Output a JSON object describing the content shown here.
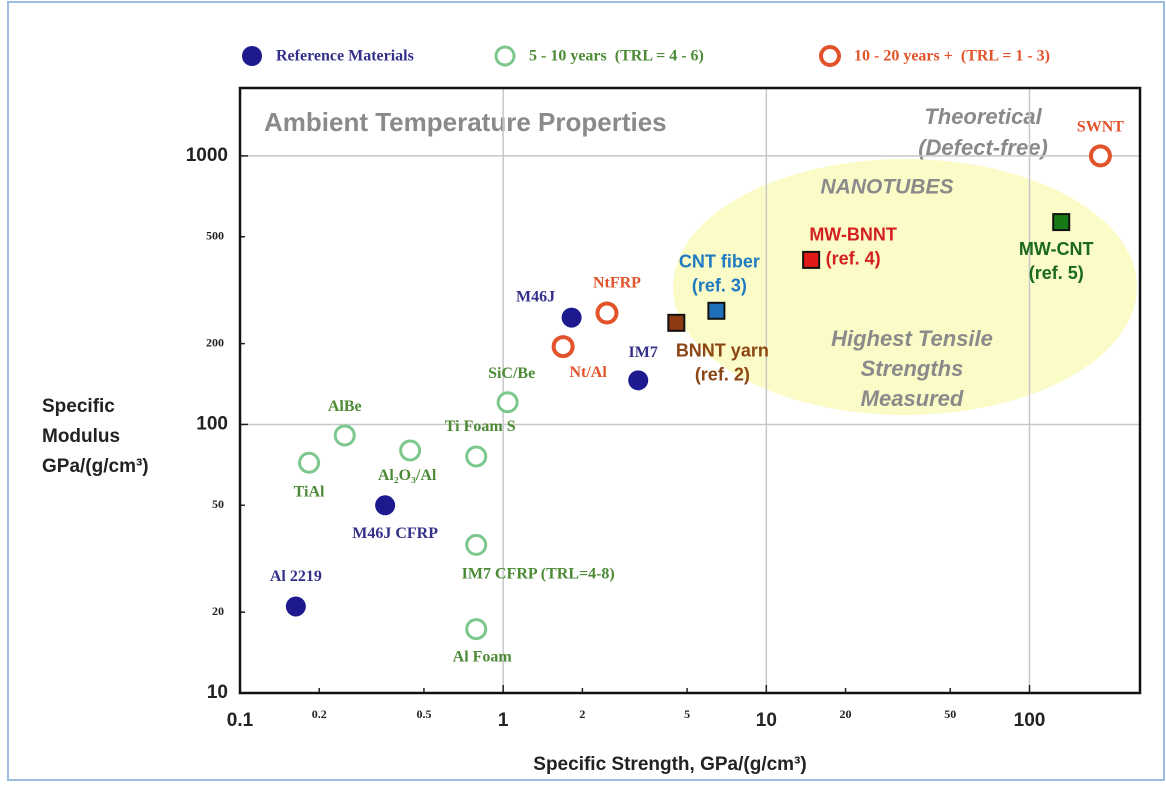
{
  "chart_data": {
    "type": "scatter",
    "title": "Ambient Temperature Properties",
    "x_label": "Specific Strength, GPa/(g/cm³)",
    "y_label": [
      "Specific",
      "Modulus",
      "GPa/(g/cm³)"
    ],
    "log_x": true,
    "log_y": true,
    "grid": true,
    "legend": "top",
    "xlim": [
      0.1,
      263
    ],
    "ylim": [
      10,
      1790
    ],
    "xticks": [
      0.1,
      0.2,
      0.5,
      1,
      2,
      5,
      10,
      20,
      50,
      100
    ],
    "yticks": [
      10,
      20,
      50,
      100,
      200,
      500,
      1000
    ],
    "annotations": [
      [
        "Theoretical",
        "(Defect-free)"
      ],
      [
        "NANOTUBES"
      ],
      [
        "Highest Tensile",
        "Strengths",
        "Measured"
      ]
    ],
    "series": [
      {
        "name": "Reference Materials",
        "color": "#1c1a8e",
        "label_color": "#35308a",
        "marker": "filled",
        "x": [
          0.163,
          0.356,
          1.82,
          3.26
        ],
        "values": [
          21,
          50,
          250,
          146
        ],
        "labels": [
          [
            "Al 2219"
          ],
          [
            "M46J CFRP"
          ],
          [
            "M46J"
          ],
          [
            "IM7"
          ]
        ]
      },
      {
        "name": "5 - 10 years  (TRL = 4 - 6)",
        "color": "#7cc88c",
        "label_color": "#4c8a36",
        "marker": "open",
        "x": [
          0.183,
          0.25,
          0.443,
          0.79,
          1.04,
          0.79,
          0.79
        ],
        "values": [
          72,
          91,
          80,
          76,
          121,
          35.6,
          17.3
        ],
        "labels": [
          [
            "TiAl"
          ],
          [
            "AlBe"
          ],
          [
            "Al₂O₃/Al"
          ],
          [
            "Ti Foam S"
          ],
          [
            "SiC/Be"
          ],
          [
            "IM7 CFRP (TRL=4-8)"
          ],
          [
            "Al Foam"
          ]
        ]
      },
      {
        "name": "10 - 20 years +  (TRL = 1 - 3)",
        "color": "#e2532b",
        "label_color": "#e2532b",
        "marker": "open",
        "x": [
          2.48,
          1.69,
          186
        ],
        "values": [
          260,
          195,
          1000
        ],
        "labels": [
          [
            "NtFRP"
          ],
          [
            "Nt/Al"
          ],
          [
            "SWNT"
          ]
        ]
      },
      {
        "marker": "square",
        "colors": [
          "#8b3a12",
          "#1f70b8",
          "#e01818",
          "#177a17"
        ],
        "label_colors": [
          "#8b4513",
          "#1f7ac0",
          "#d42020",
          "#1a6a1a"
        ],
        "x": [
          4.55,
          6.46,
          14.8,
          132
        ],
        "values": [
          239,
          265,
          410,
          567
        ],
        "labels": [
          [
            "BNNT yarn",
            "(ref. 2)"
          ],
          [
            "CNT fiber",
            "(ref. 3)"
          ],
          [
            "MW-BNNT",
            "(ref. 4)"
          ],
          [
            "MW-CNT",
            "(ref. 5)"
          ]
        ]
      }
    ]
  }
}
